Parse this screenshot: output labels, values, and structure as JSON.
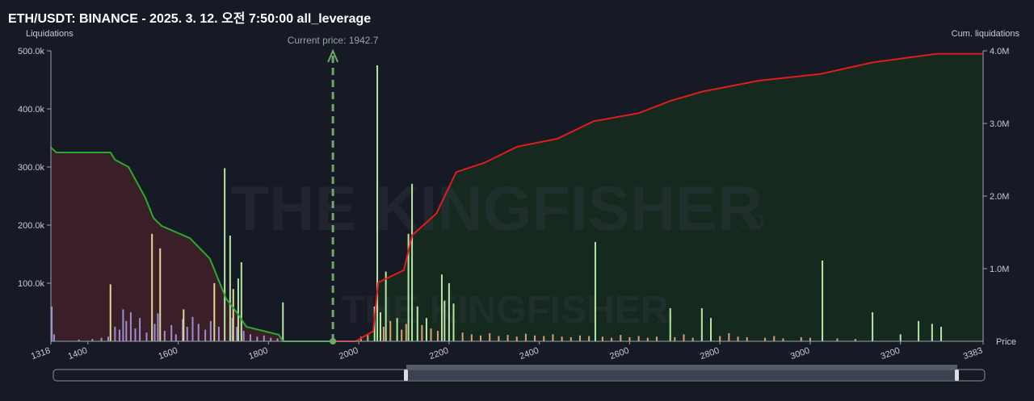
{
  "chart_data": {
    "type": "bar",
    "title": "ETH/USDT: BINANCE - 2025. 3. 12. 오전 7:50:00 all_leverage",
    "y_label": "Liquidations",
    "y2_label": "Cum. liquidations",
    "x_label": "Price",
    "annotation": {
      "text": "Current price: 1942.7",
      "x": 1942.7,
      "color": "#6fa86a"
    },
    "watermark": "THE KINGFISHER",
    "watermark_suffix": ".io",
    "xlim": [
      1318,
      3383
    ],
    "xticks": [
      1318,
      1400,
      1600,
      1800,
      2000,
      2200,
      2400,
      2600,
      2800,
      3000,
      3200,
      3383
    ],
    "ylim": [
      0,
      500000
    ],
    "yticks": [
      {
        "value": 100000,
        "label": "100.0k"
      },
      {
        "value": 200000,
        "label": "200.0k"
      },
      {
        "value": 300000,
        "label": "300.0k"
      },
      {
        "value": 400000,
        "label": "400.0k"
      },
      {
        "value": 500000,
        "label": "500.0k"
      }
    ],
    "y2lim": [
      0,
      4000000
    ],
    "y2ticks": [
      {
        "value": 1000000,
        "label": "1.0M"
      },
      {
        "value": 2000000,
        "label": "2.0M"
      },
      {
        "value": 3000000,
        "label": "3.0M"
      },
      {
        "value": 4000000,
        "label": "4.0M"
      }
    ],
    "series": [
      {
        "type": "bar",
        "color": "#9b8fd0",
        "x": [
          1320,
          1325,
          1380,
          1410,
          1430,
          1445,
          1460,
          1470,
          1478,
          1485,
          1495,
          1505,
          1515,
          1530,
          1548,
          1555,
          1570,
          1585,
          1595,
          1610,
          1620,
          1632,
          1645,
          1660,
          1672,
          1690,
          1720,
          1730,
          1745,
          1760,
          1775,
          1790,
          1805,
          1820
        ],
        "values": [
          60000,
          12000,
          3000,
          4000,
          6000,
          8000,
          25000,
          20000,
          55000,
          35000,
          50000,
          22000,
          40000,
          15000,
          30000,
          48000,
          18000,
          28000,
          12000,
          38000,
          25000,
          42000,
          30000,
          20000,
          35000,
          25000,
          40000,
          25000,
          18000,
          12000,
          8000,
          10000,
          6000,
          5000
        ]
      },
      {
        "type": "bar",
        "color": "#e2d59a",
        "x": [
          1450,
          1542,
          1560,
          1612,
          1680,
          1722
        ],
        "values": [
          98000,
          185000,
          160000,
          55000,
          100000,
          90000
        ]
      },
      {
        "type": "bar",
        "color": "#b7e6a4",
        "x": [
          1703,
          1715,
          1733,
          1740,
          1832
        ],
        "values": [
          298000,
          182000,
          108000,
          136000,
          67000
        ]
      },
      {
        "type": "bar",
        "color": "#b7e6a4",
        "x": [
          2035,
          2041,
          2048,
          2060,
          2085,
          2110,
          2118,
          2130,
          2150,
          2184,
          2190,
          2200,
          2210,
          2524,
          2690,
          2760,
          2780,
          3027,
          3138,
          3200,
          3240,
          3270,
          3290
        ],
        "values": [
          60000,
          475000,
          50000,
          120000,
          40000,
          185000,
          271000,
          60000,
          40000,
          115000,
          70000,
          100000,
          65000,
          171000,
          57000,
          57000,
          40000,
          139000,
          50000,
          12000,
          35000,
          30000,
          25000
        ]
      },
      {
        "type": "bar",
        "color": "#dc9e74",
        "x": [
          2005,
          2020,
          2055,
          2070,
          2095,
          2105,
          2140,
          2160,
          2175,
          2230,
          2250,
          2270,
          2290,
          2310,
          2330,
          2350,
          2370,
          2390,
          2410,
          2430,
          2450,
          2470,
          2490,
          2510,
          2540,
          2560,
          2580,
          2600,
          2620,
          2640,
          2660,
          2700,
          2720,
          2740,
          2800,
          2820,
          2840,
          2860,
          2900,
          2920,
          2940,
          2980,
          3000,
          3060,
          3100
        ],
        "values": [
          8000,
          12000,
          25000,
          35000,
          20000,
          30000,
          28000,
          22000,
          18000,
          15000,
          12000,
          10000,
          14000,
          9000,
          11000,
          8000,
          13000,
          10000,
          9000,
          12000,
          8000,
          7000,
          10000,
          9000,
          8000,
          6000,
          11000,
          7000,
          9000,
          6000,
          8000,
          7000,
          12000,
          6000,
          9000,
          14000,
          8000,
          7000,
          6000,
          9000,
          5000,
          7000,
          6000,
          5000,
          4000
        ]
      },
      {
        "type": "line",
        "axis": "y2",
        "color": "#2ea82e",
        "fill": "#3a1f29",
        "x": [
          1318,
          1330,
          1450,
          1460,
          1490,
          1527,
          1545,
          1563,
          1626,
          1670,
          1706,
          1733,
          1751,
          1823,
          1832,
          1942.7
        ],
        "values": [
          2670000,
          2600000,
          2600000,
          2500000,
          2400000,
          1980000,
          1700000,
          1590000,
          1420000,
          1140000,
          590000,
          370000,
          200000,
          90000,
          0,
          0
        ]
      },
      {
        "type": "line",
        "axis": "y2",
        "color": "#e01c1c",
        "fill": "#16291f",
        "x": [
          1942.7,
          1993,
          2032,
          2043,
          2100,
          2118,
          2172,
          2216,
          2279,
          2351,
          2440,
          2520,
          2619,
          2690,
          2762,
          2887,
          3022,
          3138,
          3281,
          3383
        ],
        "values": [
          0,
          0,
          140000,
          810000,
          980000,
          1460000,
          1760000,
          2330000,
          2460000,
          2680000,
          2790000,
          3030000,
          3140000,
          3310000,
          3440000,
          3590000,
          3680000,
          3840000,
          3960000,
          3960000
        ]
      }
    ]
  }
}
